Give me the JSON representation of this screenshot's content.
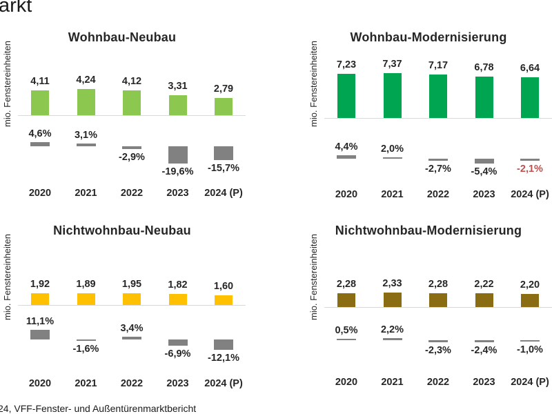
{
  "page": {
    "clipped_title": "arkt",
    "footer": "24, VFF-Fenster- und Außentürenmarktbericht"
  },
  "palette": {
    "change_bar": "#818181",
    "axis_line": "#D9D9D9",
    "text": "#262626",
    "negative_highlight": "#C0504D"
  },
  "chart_data": [
    {
      "type": "bar",
      "title": "Wohnbau-Neubau",
      "ylabel": "mio. Fenstereinheiten",
      "categories": [
        "2020",
        "2021",
        "2022",
        "2023",
        "2024 (P)"
      ],
      "values": [
        4.11,
        4.24,
        4.12,
        3.31,
        2.79
      ],
      "value_labels": [
        "4,11",
        "4,24",
        "4,12",
        "3,31",
        "2,79"
      ],
      "change_pct": [
        4.6,
        3.1,
        -2.9,
        -19.6,
        -15.7
      ],
      "change_labels": [
        "4,6%",
        "3,1%",
        "-2,9%",
        "-19,6%",
        "-15,7%"
      ],
      "bar_color": "#8CC850",
      "legend": "none",
      "grid": "off"
    },
    {
      "type": "bar",
      "title": "Wohnbau-Modernisierung",
      "ylabel": "mio. Fenstereinheiten",
      "categories": [
        "2020",
        "2021",
        "2022",
        "2023",
        "2024 (P)"
      ],
      "values": [
        7.23,
        7.37,
        7.17,
        6.78,
        6.64
      ],
      "value_labels": [
        "7,23",
        "7,37",
        "7,17",
        "6,78",
        "6,64"
      ],
      "change_pct": [
        4.4,
        2.0,
        -2.7,
        -5.4,
        -2.1
      ],
      "change_labels": [
        "4,4%",
        "2,0%",
        "-2,7%",
        "-5,4%",
        "-2,1%"
      ],
      "bar_color": "#00A551",
      "highlight_change_index": 4,
      "highlight_color": "#C0504D",
      "legend": "none",
      "grid": "off"
    },
    {
      "type": "bar",
      "title": "Nichtwohnbau-Neubau",
      "ylabel": "mio. Fenstereinheiten",
      "categories": [
        "2020",
        "2021",
        "2022",
        "2023",
        "2024 (P)"
      ],
      "values": [
        1.92,
        1.89,
        1.95,
        1.82,
        1.6
      ],
      "value_labels": [
        "1,92",
        "1,89",
        "1,95",
        "1,82",
        "1,60"
      ],
      "change_pct": [
        11.1,
        -1.6,
        3.4,
        -6.9,
        -12.1
      ],
      "change_labels": [
        "11,1%",
        "-1,6%",
        "3,4%",
        "-6,9%",
        "-12,1%"
      ],
      "bar_color": "#FFC000",
      "legend": "none",
      "grid": "off"
    },
    {
      "type": "bar",
      "title": "Nichtwohnbau-Modernisierung",
      "ylabel": "mio. Fenstereinheiten",
      "categories": [
        "2020",
        "2021",
        "2022",
        "2023",
        "2024 (P)"
      ],
      "values": [
        2.28,
        2.33,
        2.28,
        2.22,
        2.2
      ],
      "value_labels": [
        "2,28",
        "2,33",
        "2,28",
        "2,22",
        "2,20"
      ],
      "change_pct": [
        0.5,
        2.2,
        -2.3,
        -2.4,
        -1.0
      ],
      "change_labels": [
        "0,5%",
        "2,2%",
        "-2,3%",
        "-2,4%",
        "-1,0%"
      ],
      "bar_color": "#8A6D12",
      "legend": "none",
      "grid": "off"
    }
  ]
}
